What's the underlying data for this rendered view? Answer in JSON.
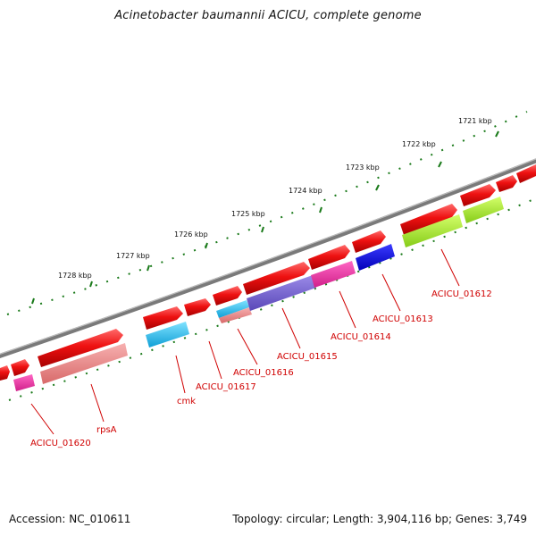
{
  "title": "Acinetobacter baumannii ACICU, complete genome",
  "accession": "Accession: NC_010611",
  "summary": "Topology: circular; Length: 3,904,116 bp; Genes: 3,749",
  "kbp_ticks": [
    "1721 kbp",
    "1722 kbp",
    "1723 kbp",
    "1724 kbp",
    "1725 kbp",
    "1726 kbp",
    "1727 kbp",
    "1728 kbp"
  ],
  "gene_labels": [
    "ACICU_01612",
    "ACICU_01613",
    "ACICU_01614",
    "ACICU_01615",
    "ACICU_01616",
    "ACICU_01617",
    "cmk",
    "rpsA",
    "ACICU_01620"
  ],
  "colors": {
    "backbone": "#808080",
    "tick": "#1a7a1a",
    "gene_red": "#ee1111",
    "label": "#d00000"
  }
}
